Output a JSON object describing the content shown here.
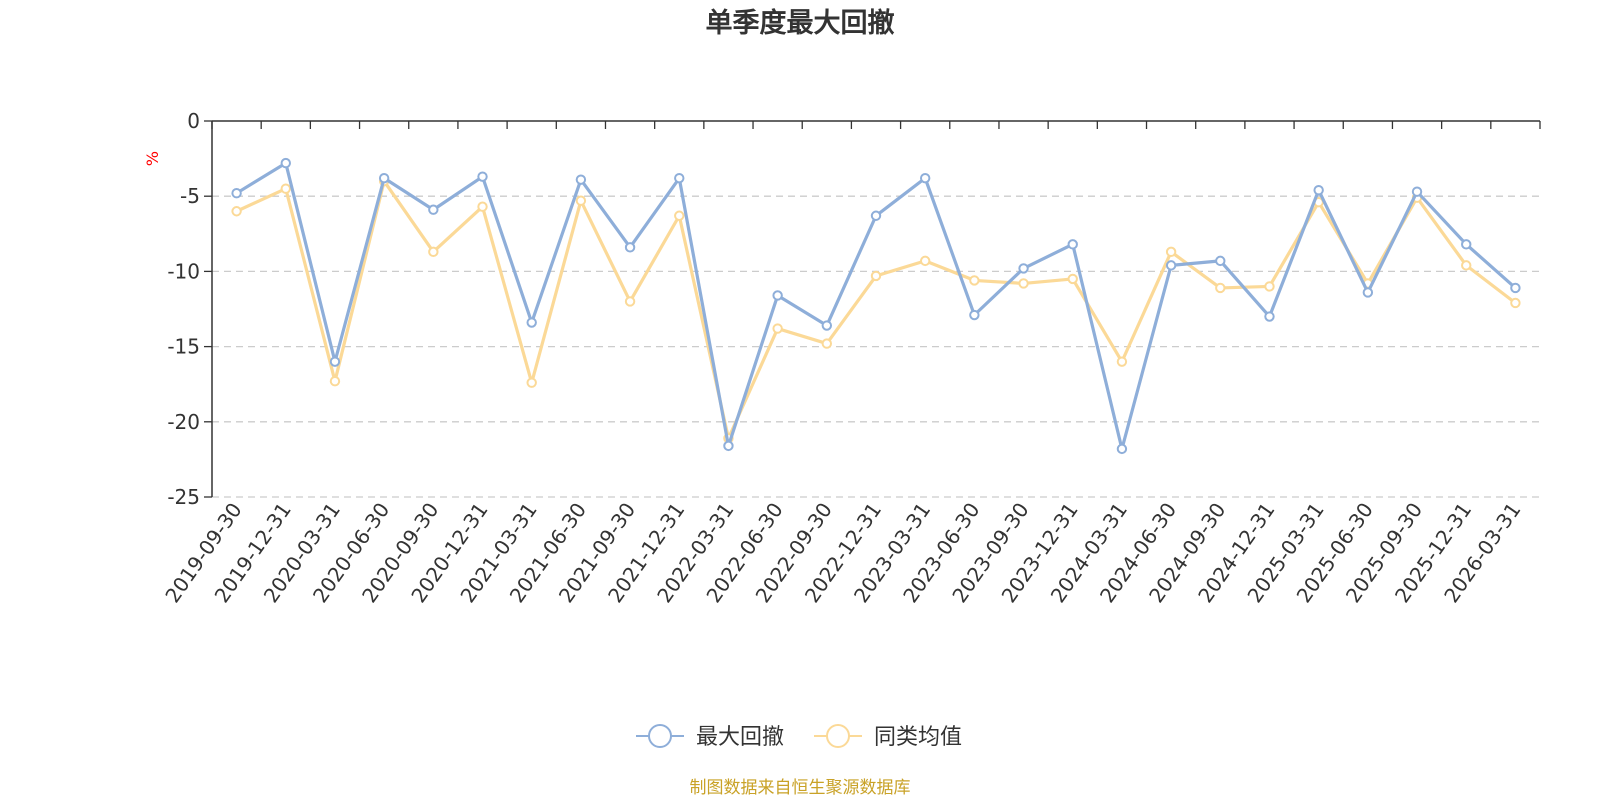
{
  "chart_data": {
    "type": "line",
    "title": "单季度最大回撤",
    "ylabel": "%",
    "ylim": [
      -25,
      0
    ],
    "yticks": [
      0,
      -5,
      -10,
      -15,
      -20,
      -25
    ],
    "grid": true,
    "legend_position": "bottom-center",
    "categories": [
      "2019-09-30",
      "2019-12-31",
      "2020-03-31",
      "2020-06-30",
      "2020-09-30",
      "2020-12-31",
      "2021-03-31",
      "2021-06-30",
      "2021-09-30",
      "2021-12-31",
      "2022-03-31",
      "2022-06-30",
      "2022-09-30",
      "2022-12-31",
      "2023-03-31",
      "2023-06-30",
      "2023-09-30",
      "2023-12-31",
      "2024-03-31",
      "2024-06-30",
      "2024-09-30",
      "2024-12-31",
      "2025-03-31",
      "2025-06-30",
      "2025-09-30",
      "2025-12-31",
      "2026-03-31"
    ],
    "series": [
      {
        "name": "最大回撤",
        "color": "#8eaed9",
        "values": [
          -4.8,
          -2.8,
          -16.0,
          -3.8,
          -5.9,
          -3.7,
          -13.4,
          -3.9,
          -8.4,
          -3.8,
          -21.6,
          -11.6,
          -13.6,
          -6.3,
          -3.8,
          -12.9,
          -9.8,
          -8.2,
          -21.8,
          -9.6,
          -9.3,
          -13.0,
          -4.6,
          -11.4,
          -4.7,
          -8.2,
          -11.1
        ]
      },
      {
        "name": "同类均值",
        "color": "#fbd997",
        "values": [
          -6.0,
          -4.5,
          -17.3,
          -4.0,
          -8.7,
          -5.7,
          -17.4,
          -5.3,
          -12.0,
          -6.3,
          -21.1,
          -13.8,
          -14.8,
          -10.3,
          -9.3,
          -10.6,
          -10.8,
          -10.5,
          -16.0,
          -8.7,
          -11.1,
          -11.0,
          -5.4,
          -10.8,
          -5.1,
          -9.6,
          -12.1
        ]
      }
    ]
  },
  "source": "制图数据来自恒生聚源数据库"
}
